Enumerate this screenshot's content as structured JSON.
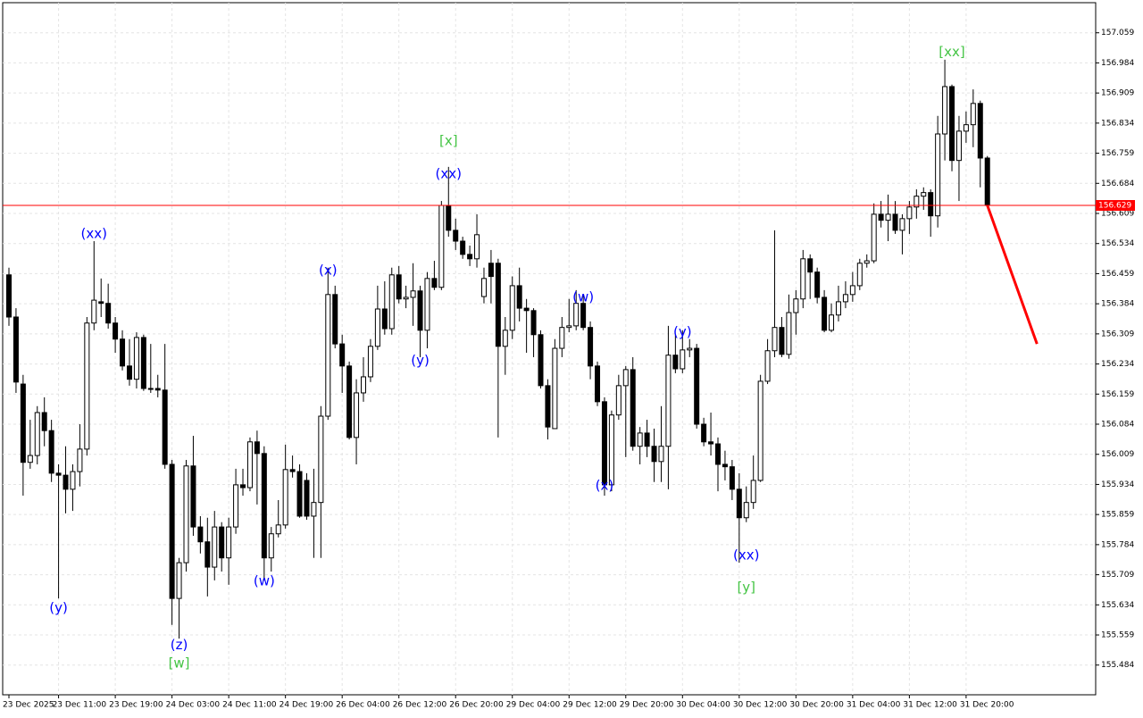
{
  "chart_data": {
    "type": "candlestick",
    "up_color": "#ffffff",
    "down_color": "#000000",
    "grid": true,
    "ylim": [
      155.41,
      157.134
    ],
    "yticks": [
      157.059,
      156.984,
      156.909,
      156.834,
      156.759,
      156.684,
      156.609,
      156.534,
      156.459,
      156.384,
      156.309,
      156.234,
      156.159,
      156.084,
      156.009,
      155.934,
      155.859,
      155.784,
      155.709,
      155.634,
      155.559,
      155.484
    ],
    "xticks": [
      {
        "value": 0,
        "label": "23 Dec 2025"
      },
      {
        "value": 7,
        "label": "23 Dec 11:00"
      },
      {
        "value": 15,
        "label": "23 Dec 19:00"
      },
      {
        "value": 23,
        "label": "24 Dec 03:00"
      },
      {
        "value": 31,
        "label": "24 Dec 11:00"
      },
      {
        "value": 39,
        "label": "24 Dec 19:00"
      },
      {
        "value": 47,
        "label": "26 Dec 04:00"
      },
      {
        "value": 55,
        "label": "26 Dec 12:00"
      },
      {
        "value": 63,
        "label": "26 Dec 20:00"
      },
      {
        "value": 71,
        "label": "29 Dec 04:00"
      },
      {
        "value": 79,
        "label": "29 Dec 12:00"
      },
      {
        "value": 87,
        "label": "29 Dec 20:00"
      },
      {
        "value": 95,
        "label": "30 Dec 04:00"
      },
      {
        "value": 103,
        "label": "30 Dec 12:00"
      },
      {
        "value": 111,
        "label": "30 Dec 20:00"
      },
      {
        "value": 119,
        "label": "31 Dec 04:00"
      },
      {
        "value": 127,
        "label": "31 Dec 12:00"
      },
      {
        "value": 135,
        "label": "31 Dec 20:00"
      }
    ],
    "current_price": 156.629,
    "current_price_color": "#ff0000",
    "forecast": {
      "color": "#ff0000",
      "x": [
        138,
        145
      ],
      "values": [
        156.629,
        156.284
      ]
    },
    "annotations": [
      {
        "text": "(xx)",
        "x": 12,
        "y": 156.558,
        "color": "#0000ff"
      },
      {
        "text": "(y)",
        "x": 7,
        "y": 155.626,
        "color": "#0000ff"
      },
      {
        "text": "(z)",
        "x": 24,
        "y": 155.533,
        "color": "#0000ff"
      },
      {
        "text": "[w]",
        "x": 24,
        "y": 155.488,
        "color": "#44c444"
      },
      {
        "text": "(w)",
        "x": 36,
        "y": 155.693,
        "color": "#0000ff"
      },
      {
        "text": "(x)",
        "x": 45,
        "y": 156.467,
        "color": "#0000ff"
      },
      {
        "text": "(y)",
        "x": 58,
        "y": 156.242,
        "color": "#0000ff"
      },
      {
        "text": "(xx)",
        "x": 62,
        "y": 156.707,
        "color": "#0000ff"
      },
      {
        "text": "[x]",
        "x": 62,
        "y": 156.789,
        "color": "#44c444"
      },
      {
        "text": "(w)",
        "x": 81,
        "y": 156.4,
        "color": "#0000ff"
      },
      {
        "text": "(x)",
        "x": 84,
        "y": 155.931,
        "color": "#0000ff"
      },
      {
        "text": "(y)",
        "x": 95,
        "y": 156.313,
        "color": "#0000ff"
      },
      {
        "text": "(xx)",
        "x": 104,
        "y": 155.757,
        "color": "#0000ff"
      },
      {
        "text": "[y]",
        "x": 104,
        "y": 155.677,
        "color": "#44c444"
      },
      {
        "text": "[xx]",
        "x": 133,
        "y": 157.01,
        "color": "#44c444"
      }
    ],
    "ohlc": [
      [
        156.456,
        156.474,
        156.329,
        156.351
      ],
      [
        156.351,
        156.373,
        156.162,
        156.189
      ],
      [
        156.184,
        156.207,
        155.906,
        155.989
      ],
      [
        155.989,
        156.095,
        155.973,
        156.006
      ],
      [
        156.006,
        156.129,
        155.984,
        156.113
      ],
      [
        156.113,
        156.151,
        156.029,
        156.068
      ],
      [
        156.068,
        156.095,
        155.94,
        155.962
      ],
      [
        155.962,
        155.984,
        155.65,
        155.957
      ],
      [
        155.957,
        156.029,
        155.862,
        155.922
      ],
      [
        155.922,
        155.984,
        155.868,
        155.966
      ],
      [
        155.966,
        156.084,
        155.929,
        156.022
      ],
      [
        156.022,
        156.351,
        156.006,
        156.336
      ],
      [
        156.336,
        156.54,
        156.318,
        156.393
      ],
      [
        156.389,
        156.447,
        156.351,
        156.385
      ],
      [
        156.385,
        156.434,
        156.322,
        156.336
      ],
      [
        156.336,
        156.351,
        156.262,
        156.296
      ],
      [
        156.296,
        156.318,
        156.218,
        156.229
      ],
      [
        156.229,
        156.296,
        156.18,
        156.196
      ],
      [
        156.196,
        156.313,
        156.173,
        156.3
      ],
      [
        156.3,
        156.307,
        156.167,
        156.173
      ],
      [
        156.173,
        156.284,
        156.162,
        156.173
      ],
      [
        156.173,
        156.207,
        156.151,
        156.169
      ],
      [
        156.169,
        156.284,
        155.973,
        155.984
      ],
      [
        155.984,
        155.995,
        155.584,
        155.65
      ],
      [
        155.65,
        155.751,
        155.55,
        155.739
      ],
      [
        155.739,
        155.995,
        155.717,
        155.98
      ],
      [
        155.98,
        156.055,
        155.806,
        155.828
      ],
      [
        155.828,
        155.855,
        155.762,
        155.791
      ],
      [
        155.791,
        155.851,
        155.655,
        155.728
      ],
      [
        155.728,
        155.868,
        155.695,
        155.828
      ],
      [
        155.828,
        155.84,
        155.717,
        155.751
      ],
      [
        155.751,
        155.851,
        155.684,
        155.828
      ],
      [
        155.828,
        155.973,
        155.811,
        155.933
      ],
      [
        155.933,
        155.973,
        155.906,
        155.926
      ],
      [
        155.926,
        156.051,
        155.917,
        156.04
      ],
      [
        156.04,
        156.068,
        155.884,
        156.011
      ],
      [
        156.011,
        156.029,
        155.695,
        155.751
      ],
      [
        155.751,
        155.828,
        155.717,
        155.811
      ],
      [
        155.811,
        155.895,
        155.802,
        155.833
      ],
      [
        155.833,
        156.033,
        155.824,
        155.971
      ],
      [
        155.971,
        156.006,
        155.951,
        155.966
      ],
      [
        155.966,
        155.984,
        155.851,
        155.855
      ],
      [
        155.944,
        155.962,
        155.846,
        155.855
      ],
      [
        155.855,
        155.973,
        155.751,
        155.889
      ],
      [
        155.889,
        156.129,
        155.751,
        156.104
      ],
      [
        156.104,
        156.474,
        156.095,
        156.407
      ],
      [
        156.407,
        156.429,
        156.273,
        156.284
      ],
      [
        156.284,
        156.307,
        156.162,
        156.229
      ],
      [
        156.229,
        156.24,
        156.046,
        156.051
      ],
      [
        156.051,
        156.196,
        155.984,
        156.162
      ],
      [
        156.162,
        156.251,
        156.14,
        156.202
      ],
      [
        156.202,
        156.296,
        156.189,
        156.278
      ],
      [
        156.278,
        156.429,
        156.269,
        156.371
      ],
      [
        156.371,
        156.44,
        156.307,
        156.322
      ],
      [
        156.322,
        156.474,
        156.307,
        156.456
      ],
      [
        156.456,
        156.478,
        156.385,
        156.396
      ],
      [
        156.396,
        156.429,
        156.373,
        156.4
      ],
      [
        156.4,
        156.485,
        156.329,
        156.416
      ],
      [
        156.416,
        156.429,
        156.251,
        156.318
      ],
      [
        156.318,
        156.463,
        156.273,
        156.447
      ],
      [
        156.447,
        156.491,
        156.418,
        156.425
      ],
      [
        156.425,
        156.64,
        156.418,
        156.629
      ],
      [
        156.629,
        156.725,
        156.551,
        156.567
      ],
      [
        156.567,
        156.596,
        156.518,
        156.54
      ],
      [
        156.54,
        156.551,
        156.496,
        156.507
      ],
      [
        156.507,
        156.529,
        156.478,
        156.496
      ],
      [
        156.496,
        156.607,
        156.474,
        156.556
      ],
      [
        156.402,
        156.474,
        156.385,
        156.447
      ],
      [
        156.485,
        156.518,
        156.385,
        156.452
      ],
      [
        156.485,
        156.496,
        156.051,
        156.278
      ],
      [
        156.278,
        156.351,
        156.207,
        156.318
      ],
      [
        156.318,
        156.452,
        156.296,
        156.429
      ],
      [
        156.429,
        156.474,
        156.34,
        156.373
      ],
      [
        156.373,
        156.396,
        156.262,
        156.367
      ],
      [
        156.367,
        156.373,
        156.251,
        156.307
      ],
      [
        156.307,
        156.318,
        156.173,
        156.18
      ],
      [
        156.18,
        156.196,
        156.046,
        156.077
      ],
      [
        156.073,
        156.296,
        156.073,
        156.273
      ],
      [
        156.273,
        156.351,
        156.251,
        156.325
      ],
      [
        156.325,
        156.396,
        156.313,
        156.329
      ],
      [
        156.329,
        156.418,
        156.318,
        156.385
      ],
      [
        156.385,
        156.407,
        156.318,
        156.325
      ],
      [
        156.325,
        156.34,
        156.196,
        156.229
      ],
      [
        156.229,
        156.24,
        156.129,
        156.14
      ],
      [
        156.14,
        156.151,
        155.906,
        155.933
      ],
      [
        155.933,
        156.118,
        155.917,
        156.107
      ],
      [
        156.107,
        156.207,
        156.095,
        156.18
      ],
      [
        156.18,
        156.229,
        156.002,
        156.22
      ],
      [
        156.22,
        156.251,
        156.018,
        156.029
      ],
      [
        156.029,
        156.077,
        155.984,
        156.062
      ],
      [
        156.062,
        156.095,
        156.002,
        156.029
      ],
      [
        156.029,
        156.073,
        155.94,
        155.991
      ],
      [
        155.991,
        156.129,
        155.94,
        156.029
      ],
      [
        156.029,
        156.329,
        155.922,
        156.256
      ],
      [
        156.256,
        156.307,
        156.211,
        156.222
      ],
      [
        156.222,
        156.318,
        156.211,
        156.269
      ],
      [
        156.269,
        156.296,
        156.251,
        156.273
      ],
      [
        156.273,
        156.284,
        156.073,
        156.084
      ],
      [
        156.084,
        156.1,
        156.029,
        156.04
      ],
      [
        156.04,
        156.113,
        156.006,
        156.035
      ],
      [
        156.035,
        156.051,
        155.917,
        155.984
      ],
      [
        155.984,
        156.018,
        155.944,
        155.978
      ],
      [
        155.978,
        155.995,
        155.895,
        155.922
      ],
      [
        155.922,
        155.962,
        155.739,
        155.851
      ],
      [
        155.851,
        155.929,
        155.84,
        155.889
      ],
      [
        155.889,
        156.006,
        155.873,
        155.944
      ],
      [
        155.944,
        156.207,
        155.94,
        156.191
      ],
      [
        156.191,
        156.296,
        156.184,
        156.267
      ],
      [
        156.267,
        156.567,
        156.251,
        156.325
      ],
      [
        156.325,
        156.351,
        156.251,
        156.258
      ],
      [
        156.258,
        156.407,
        156.247,
        156.362
      ],
      [
        156.362,
        156.418,
        156.307,
        156.396
      ],
      [
        156.396,
        156.518,
        156.373,
        156.496
      ],
      [
        156.496,
        156.507,
        156.396,
        156.463
      ],
      [
        156.463,
        156.474,
        156.385,
        156.4
      ],
      [
        156.4,
        156.418,
        156.313,
        156.318
      ],
      [
        156.318,
        156.385,
        156.313,
        156.356
      ],
      [
        156.356,
        156.429,
        156.34,
        156.389
      ],
      [
        156.389,
        156.44,
        156.373,
        156.407
      ],
      [
        156.407,
        156.463,
        156.389,
        156.429
      ],
      [
        156.429,
        156.496,
        156.418,
        156.485
      ],
      [
        156.485,
        156.507,
        156.474,
        156.491
      ],
      [
        156.491,
        156.634,
        156.485,
        156.607
      ],
      [
        156.607,
        156.64,
        156.574,
        156.592
      ],
      [
        156.592,
        156.656,
        156.54,
        156.607
      ],
      [
        156.607,
        156.64,
        156.558,
        156.567
      ],
      [
        156.567,
        156.607,
        156.507,
        156.596
      ],
      [
        156.596,
        156.64,
        156.558,
        156.625
      ],
      [
        156.625,
        156.669,
        156.596,
        156.652
      ],
      [
        156.652,
        156.674,
        156.618,
        156.661
      ],
      [
        156.661,
        156.669,
        156.551,
        156.603
      ],
      [
        156.603,
        156.852,
        156.574,
        156.807
      ],
      [
        156.807,
        156.992,
        156.741,
        156.925
      ],
      [
        156.925,
        156.93,
        156.714,
        156.741
      ],
      [
        156.741,
        156.852,
        156.64,
        156.814
      ],
      [
        156.814,
        156.863,
        156.785,
        156.83
      ],
      [
        156.83,
        156.918,
        156.774,
        156.883
      ],
      [
        156.883,
        156.89,
        156.674,
        156.747
      ],
      [
        156.747,
        156.752,
        156.625,
        156.629
      ]
    ]
  }
}
